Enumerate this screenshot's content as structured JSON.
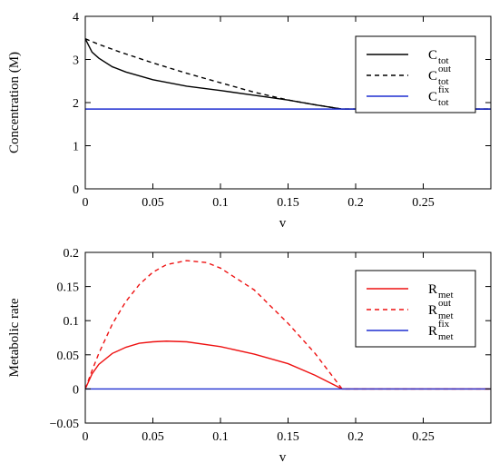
{
  "chart_data": [
    {
      "type": "line",
      "xlabel": "v",
      "ylabel": "Concentration (M)",
      "xlim": [
        0,
        0.3
      ],
      "ylim": [
        0,
        4
      ],
      "x_ticks": [
        0,
        0.05,
        0.1,
        0.15,
        0.2,
        0.25
      ],
      "x_tick_labels": [
        "0",
        "0.05",
        "0.1",
        "0.15",
        "0.2",
        "0.25"
      ],
      "y_ticks": [
        0,
        1,
        2,
        3,
        4
      ],
      "y_tick_labels": [
        "0",
        "1",
        "2",
        "3",
        "4"
      ],
      "grid": false,
      "legend_position": "top-right",
      "series": [
        {
          "legend": {
            "base": "C",
            "sub": "tot",
            "sup": ""
          },
          "color": "#000000",
          "dash": "solid",
          "x": [
            0,
            0.005,
            0.01,
            0.02,
            0.03,
            0.05,
            0.075,
            0.1,
            0.125,
            0.15,
            0.17,
            0.19,
            0.3
          ],
          "y": [
            3.48,
            3.17,
            3.03,
            2.83,
            2.71,
            2.53,
            2.38,
            2.28,
            2.17,
            2.06,
            1.95,
            1.85,
            1.85
          ]
        },
        {
          "legend": {
            "base": "C",
            "sub": "tot",
            "sup": "out"
          },
          "color": "#000000",
          "dash": "dashed",
          "x": [
            0,
            0.01,
            0.025,
            0.05,
            0.075,
            0.1,
            0.125,
            0.15,
            0.17,
            0.19,
            0.3
          ],
          "y": [
            3.48,
            3.35,
            3.18,
            2.92,
            2.68,
            2.46,
            2.24,
            2.06,
            1.95,
            1.85,
            1.85
          ]
        },
        {
          "legend": {
            "base": "C",
            "sub": "tot",
            "sup": "fix"
          },
          "color": "#1f2fd0",
          "dash": "solid",
          "x": [
            0,
            0.3
          ],
          "y": [
            1.85,
            1.85
          ]
        }
      ]
    },
    {
      "type": "line",
      "xlabel": "v",
      "ylabel": "Metabolic rate",
      "xlim": [
        0,
        0.3
      ],
      "ylim": [
        -0.05,
        0.2
      ],
      "x_ticks": [
        0,
        0.05,
        0.1,
        0.15,
        0.2,
        0.25
      ],
      "x_tick_labels": [
        "0",
        "0.05",
        "0.1",
        "0.15",
        "0.2",
        "0.25"
      ],
      "y_ticks": [
        -0.05,
        0,
        0.05,
        0.1,
        0.15,
        0.2
      ],
      "y_tick_labels": [
        "−0.05",
        "0",
        "0.05",
        "0.1",
        "0.15",
        "0.2"
      ],
      "grid": false,
      "legend_position": "top-right",
      "series": [
        {
          "legend": {
            "base": "R",
            "sub": "met",
            "sup": ""
          },
          "color": "#ee1111",
          "dash": "solid",
          "x": [
            0,
            0.005,
            0.01,
            0.02,
            0.03,
            0.04,
            0.05,
            0.06,
            0.075,
            0.1,
            0.125,
            0.15,
            0.17,
            0.19,
            0.3
          ],
          "y": [
            0,
            0.022,
            0.036,
            0.052,
            0.061,
            0.067,
            0.069,
            0.07,
            0.069,
            0.062,
            0.051,
            0.037,
            0.02,
            0,
            0
          ]
        },
        {
          "legend": {
            "base": "R",
            "sub": "met",
            "sup": "out"
          },
          "color": "#ee1111",
          "dash": "dashed",
          "x": [
            0,
            0.005,
            0.01,
            0.02,
            0.03,
            0.04,
            0.05,
            0.06,
            0.075,
            0.09,
            0.1,
            0.125,
            0.15,
            0.17,
            0.19,
            0.3
          ],
          "y": [
            0,
            0.027,
            0.052,
            0.095,
            0.128,
            0.153,
            0.171,
            0.182,
            0.188,
            0.185,
            0.177,
            0.145,
            0.096,
            0.052,
            0,
            0
          ]
        },
        {
          "legend": {
            "base": "R",
            "sub": "met",
            "sup": "fix"
          },
          "color": "#1f2fd0",
          "dash": "solid",
          "x": [
            0,
            0.3
          ],
          "y": [
            0,
            0
          ]
        }
      ]
    }
  ]
}
